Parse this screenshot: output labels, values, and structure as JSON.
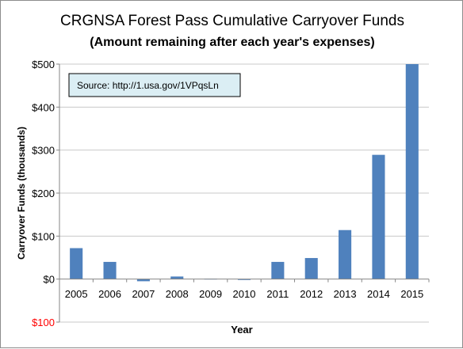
{
  "chart_data": {
    "type": "bar",
    "title": "CRGNSA Forest Pass Cumulative Carryover Funds",
    "subtitle": "(Amount remaining after each year's expenses)",
    "xlabel": "Year",
    "ylabel": "Carryover Funds (thousands)",
    "source_note": "Source: http://1.usa.gov/1VPqsLn",
    "categories": [
      "2005",
      "2006",
      "2007",
      "2008",
      "2009",
      "2010",
      "2011",
      "2012",
      "2013",
      "2014",
      "2015"
    ],
    "values": [
      72,
      40,
      -5,
      6,
      1,
      -2,
      40,
      49,
      114,
      289,
      500
    ],
    "ylim": [
      -100,
      500
    ],
    "yticks": [
      -100,
      0,
      100,
      200,
      300,
      400,
      500
    ],
    "ytick_labels": [
      "$100",
      "$0",
      "$100",
      "$200",
      "$300",
      "$400",
      "$500"
    ],
    "grid": "horizontal",
    "legend": "none",
    "colors": {
      "bar": "#4f81bd",
      "grid": "#c8c8c8",
      "axis": "#868686",
      "negative_tick_label": "#ff0000",
      "note_background": "#dbeef4"
    }
  }
}
